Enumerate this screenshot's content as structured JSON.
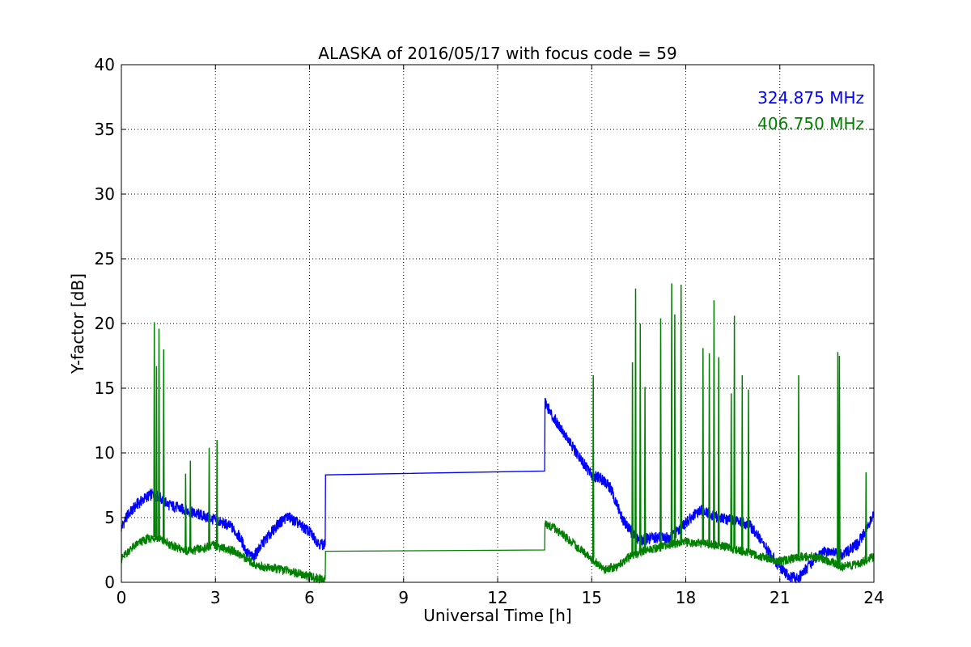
{
  "chart_data": {
    "type": "line",
    "title": "ALASKA of 2016/05/17 with focus code = 59",
    "xlabel": "Universal Time [h]",
    "ylabel": "Y-factor [dB]",
    "xlim": [
      0,
      24
    ],
    "ylim": [
      0,
      40
    ],
    "xticks": [
      0,
      3,
      6,
      9,
      12,
      15,
      18,
      21,
      24
    ],
    "yticks": [
      0,
      5,
      10,
      15,
      20,
      25,
      30,
      35,
      40
    ],
    "grid": true,
    "legend_position": "top-right",
    "series": [
      {
        "name": "324.875 MHz",
        "color": "#0000ff",
        "x": [
          0,
          0.2,
          0.5,
          0.8,
          1.0,
          1.2,
          1.5,
          2.0,
          2.5,
          3.0,
          3.5,
          3.8,
          4.0,
          4.2,
          4.5,
          5.0,
          5.3,
          5.6,
          6.0,
          6.3,
          6.5,
          6.51,
          13.5,
          13.51,
          13.7,
          14.0,
          14.5,
          15.0,
          15.3,
          15.6,
          16.0,
          16.5,
          17.0,
          17.5,
          18.0,
          18.5,
          19.0,
          19.5,
          20.0,
          20.3,
          20.6,
          21.0,
          21.3,
          21.6,
          21.9,
          22.2,
          22.5,
          23.0,
          23.5,
          24.0
        ],
        "y": [
          4.2,
          5.2,
          6.0,
          6.6,
          6.8,
          6.6,
          6.0,
          5.6,
          5.2,
          4.8,
          4.3,
          3.4,
          2.3,
          1.9,
          3.0,
          4.5,
          5.1,
          4.6,
          3.9,
          3.0,
          2.9,
          8.3,
          8.6,
          14.0,
          13.0,
          12.0,
          10.0,
          8.3,
          8.0,
          7.3,
          4.8,
          3.2,
          3.5,
          3.4,
          4.6,
          5.6,
          5.0,
          4.8,
          4.5,
          3.6,
          2.5,
          1.2,
          0.4,
          0.3,
          1.2,
          2.1,
          2.4,
          2.1,
          3.0,
          5.2
        ]
      },
      {
        "name": "406.750 MHz",
        "color": "#008000",
        "x": [
          0,
          0.3,
          0.6,
          0.9,
          1.1,
          1.4,
          1.8,
          2.2,
          2.6,
          2.9,
          3.2,
          3.6,
          4.0,
          4.3,
          4.7,
          5.1,
          5.5,
          5.9,
          6.3,
          6.5,
          6.51,
          13.5,
          13.51,
          13.8,
          14.2,
          14.6,
          15.0,
          15.4,
          15.8,
          16.2,
          16.6,
          17.0,
          17.5,
          18.0,
          18.5,
          19.0,
          19.5,
          20.0,
          20.5,
          21.0,
          21.5,
          22.0,
          22.5,
          23.0,
          23.5,
          24.0
        ],
        "y": [
          1.8,
          2.6,
          3.1,
          3.4,
          3.5,
          3.1,
          2.6,
          2.4,
          2.6,
          2.9,
          2.7,
          2.4,
          1.8,
          1.3,
          1.1,
          1.0,
          0.8,
          0.5,
          0.3,
          0.2,
          2.4,
          2.5,
          4.6,
          4.2,
          3.4,
          2.6,
          1.8,
          1.0,
          1.2,
          2.0,
          2.4,
          2.6,
          2.9,
          3.1,
          3.0,
          2.9,
          2.6,
          2.3,
          1.9,
          1.6,
          1.9,
          2.0,
          1.7,
          1.2,
          1.4,
          2.0
        ]
      }
    ],
    "spikes": {
      "324.875 MHz": [],
      "406.750 MHz": [
        {
          "x": 1.05,
          "base": 3.5,
          "peak": 20.1
        },
        {
          "x": 1.12,
          "base": 3.4,
          "peak": 16.7
        },
        {
          "x": 1.2,
          "base": 3.3,
          "peak": 19.6
        },
        {
          "x": 1.35,
          "base": 3.2,
          "peak": 18.0
        },
        {
          "x": 2.05,
          "base": 2.5,
          "peak": 8.4
        },
        {
          "x": 2.2,
          "base": 2.4,
          "peak": 9.4
        },
        {
          "x": 2.8,
          "base": 2.8,
          "peak": 10.4
        },
        {
          "x": 3.05,
          "base": 2.8,
          "peak": 11.0
        },
        {
          "x": 15.05,
          "base": 1.9,
          "peak": 16.0
        },
        {
          "x": 16.3,
          "base": 2.1,
          "peak": 17.0
        },
        {
          "x": 16.4,
          "base": 2.2,
          "peak": 22.7
        },
        {
          "x": 16.55,
          "base": 2.3,
          "peak": 20.0
        },
        {
          "x": 16.7,
          "base": 2.3,
          "peak": 15.1
        },
        {
          "x": 17.2,
          "base": 2.6,
          "peak": 20.4
        },
        {
          "x": 17.55,
          "base": 2.8,
          "peak": 23.1
        },
        {
          "x": 17.65,
          "base": 2.9,
          "peak": 20.7
        },
        {
          "x": 17.85,
          "base": 3.0,
          "peak": 23.0
        },
        {
          "x": 18.55,
          "base": 3.0,
          "peak": 18.1
        },
        {
          "x": 18.75,
          "base": 3.0,
          "peak": 17.7
        },
        {
          "x": 18.9,
          "base": 2.9,
          "peak": 21.8
        },
        {
          "x": 19.05,
          "base": 2.9,
          "peak": 17.4
        },
        {
          "x": 19.45,
          "base": 2.7,
          "peak": 14.6
        },
        {
          "x": 19.55,
          "base": 2.7,
          "peak": 20.6
        },
        {
          "x": 19.8,
          "base": 2.5,
          "peak": 16.0
        },
        {
          "x": 20.0,
          "base": 2.4,
          "peak": 14.9
        },
        {
          "x": 21.6,
          "base": 1.9,
          "peak": 16.0
        },
        {
          "x": 22.85,
          "base": 1.4,
          "peak": 17.8
        },
        {
          "x": 22.9,
          "base": 1.4,
          "peak": 17.5
        },
        {
          "x": 23.75,
          "base": 1.6,
          "peak": 8.5
        }
      ]
    }
  }
}
